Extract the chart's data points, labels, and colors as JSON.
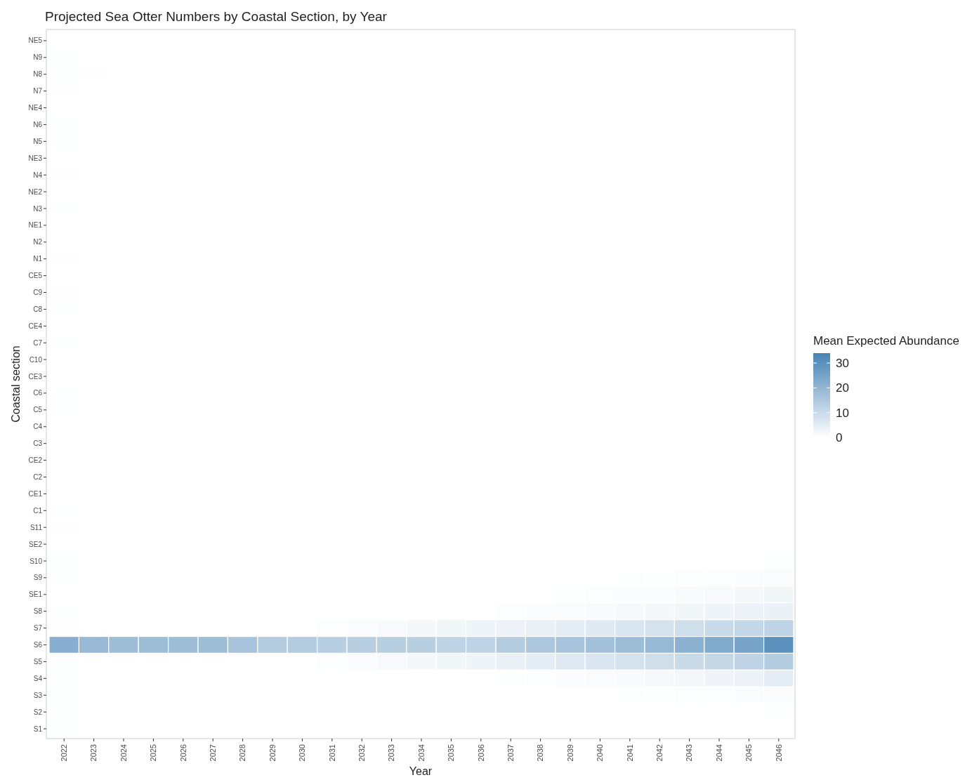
{
  "chart_data": {
    "type": "heatmap",
    "title": "Projected Sea Otter Numbers by Coastal Section, by Year",
    "xlabel": "Year",
    "ylabel": "Coastal section",
    "clabel": "Mean Expected Abundance",
    "categories": [
      "2022",
      "2023",
      "2024",
      "2025",
      "2026",
      "2027",
      "2028",
      "2029",
      "2030",
      "2031",
      "2032",
      "2033",
      "2034",
      "2035",
      "2036",
      "2037",
      "2038",
      "2039",
      "2040",
      "2041",
      "2042",
      "2043",
      "2044",
      "2045",
      "2046"
    ],
    "y_categories": [
      "NE5",
      "N9",
      "N8",
      "N7",
      "NE4",
      "N6",
      "N5",
      "NE3",
      "N4",
      "NE2",
      "N3",
      "NE1",
      "N2",
      "N1",
      "CE5",
      "C9",
      "C8",
      "CE4",
      "C7",
      "C10",
      "CE3",
      "C6",
      "C5",
      "C4",
      "C3",
      "CE2",
      "C2",
      "CE1",
      "C1",
      "S11",
      "SE2",
      "S10",
      "S9",
      "SE1",
      "S8",
      "S7",
      "S6",
      "S5",
      "S4",
      "S3",
      "S2",
      "S1"
    ],
    "cells": [
      [
        0,
        0,
        0,
        0,
        0,
        0,
        0,
        0,
        0,
        0,
        0,
        0,
        0,
        0,
        0,
        0,
        0,
        0,
        0,
        0,
        0,
        0,
        0,
        0,
        0
      ],
      [
        0.3,
        0,
        0,
        0,
        0,
        0,
        0,
        0,
        0,
        0,
        0,
        0,
        0,
        0,
        0,
        0,
        0,
        0,
        0,
        0,
        0,
        0,
        0,
        0,
        0
      ],
      [
        0.3,
        0.2,
        0,
        0,
        0,
        0,
        0,
        0,
        0,
        0,
        0,
        0,
        0,
        0,
        0,
        0,
        0,
        0,
        0,
        0,
        0,
        0,
        0,
        0,
        0
      ],
      [
        0.2,
        0,
        0,
        0,
        0,
        0,
        0,
        0,
        0,
        0,
        0,
        0,
        0,
        0,
        0,
        0,
        0,
        0,
        0,
        0,
        0,
        0,
        0,
        0,
        0
      ],
      [
        0,
        0,
        0,
        0,
        0,
        0,
        0,
        0,
        0,
        0,
        0,
        0,
        0,
        0,
        0,
        0,
        0,
        0,
        0,
        0,
        0,
        0,
        0,
        0,
        0
      ],
      [
        0.3,
        0,
        0,
        0,
        0,
        0,
        0,
        0,
        0,
        0,
        0,
        0,
        0,
        0,
        0,
        0,
        0,
        0,
        0,
        0,
        0,
        0,
        0,
        0,
        0
      ],
      [
        0.3,
        0,
        0,
        0,
        0,
        0,
        0,
        0,
        0,
        0,
        0,
        0,
        0,
        0,
        0,
        0,
        0,
        0,
        0,
        0,
        0,
        0,
        0,
        0,
        0
      ],
      [
        0,
        0,
        0,
        0,
        0,
        0,
        0,
        0,
        0,
        0,
        0,
        0,
        0,
        0,
        0,
        0,
        0,
        0,
        0,
        0,
        0,
        0,
        0,
        0,
        0
      ],
      [
        0.2,
        0,
        0,
        0,
        0,
        0,
        0,
        0,
        0,
        0,
        0,
        0,
        0,
        0,
        0,
        0,
        0,
        0,
        0,
        0,
        0,
        0,
        0,
        0,
        0
      ],
      [
        0,
        0,
        0,
        0,
        0,
        0,
        0,
        0,
        0,
        0,
        0,
        0,
        0,
        0,
        0,
        0,
        0,
        0,
        0,
        0,
        0,
        0,
        0,
        0,
        0
      ],
      [
        0.3,
        0,
        0,
        0,
        0,
        0,
        0,
        0,
        0,
        0,
        0,
        0,
        0,
        0,
        0,
        0,
        0,
        0,
        0,
        0,
        0,
        0,
        0,
        0,
        0
      ],
      [
        0,
        0,
        0,
        0,
        0,
        0,
        0,
        0,
        0,
        0,
        0,
        0,
        0,
        0,
        0,
        0,
        0,
        0,
        0,
        0,
        0,
        0,
        0,
        0,
        0
      ],
      [
        0,
        0,
        0,
        0,
        0,
        0,
        0,
        0,
        0,
        0,
        0,
        0,
        0,
        0,
        0,
        0,
        0,
        0,
        0,
        0,
        0,
        0,
        0,
        0,
        0
      ],
      [
        0.2,
        0,
        0,
        0,
        0,
        0,
        0,
        0,
        0,
        0,
        0,
        0,
        0,
        0,
        0,
        0,
        0,
        0,
        0,
        0,
        0,
        0,
        0,
        0,
        0
      ],
      [
        0,
        0,
        0,
        0,
        0,
        0,
        0,
        0,
        0,
        0,
        0,
        0,
        0,
        0,
        0,
        0,
        0,
        0,
        0,
        0,
        0,
        0,
        0,
        0,
        0
      ],
      [
        0.2,
        0,
        0,
        0,
        0,
        0,
        0,
        0,
        0,
        0,
        0,
        0,
        0,
        0,
        0,
        0,
        0,
        0,
        0,
        0,
        0,
        0,
        0,
        0,
        0
      ],
      [
        0.3,
        0,
        0,
        0,
        0,
        0,
        0,
        0,
        0,
        0,
        0,
        0,
        0,
        0,
        0,
        0,
        0,
        0,
        0,
        0,
        0,
        0,
        0,
        0,
        0
      ],
      [
        0,
        0,
        0,
        0,
        0,
        0,
        0,
        0,
        0,
        0,
        0,
        0,
        0,
        0,
        0,
        0,
        0,
        0,
        0,
        0,
        0,
        0,
        0,
        0,
        0
      ],
      [
        0.3,
        0,
        0,
        0,
        0,
        0,
        0,
        0,
        0,
        0,
        0,
        0,
        0,
        0,
        0,
        0,
        0,
        0,
        0,
        0,
        0,
        0,
        0,
        0,
        0
      ],
      [
        0,
        0,
        0,
        0,
        0,
        0,
        0,
        0,
        0,
        0,
        0,
        0,
        0,
        0,
        0,
        0,
        0,
        0,
        0,
        0,
        0,
        0,
        0,
        0,
        0
      ],
      [
        0,
        0,
        0,
        0,
        0,
        0,
        0,
        0,
        0,
        0,
        0,
        0,
        0,
        0,
        0,
        0,
        0,
        0,
        0,
        0,
        0,
        0,
        0,
        0,
        0
      ],
      [
        0.1,
        0,
        0,
        0,
        0,
        0,
        0,
        0,
        0,
        0,
        0,
        0,
        0,
        0,
        0,
        0,
        0,
        0,
        0,
        0,
        0,
        0,
        0,
        0,
        0
      ],
      [
        0.1,
        0,
        0,
        0,
        0,
        0,
        0,
        0,
        0,
        0,
        0,
        0,
        0,
        0,
        0,
        0,
        0,
        0,
        0,
        0,
        0,
        0,
        0,
        0,
        0
      ],
      [
        0,
        0,
        0,
        0,
        0,
        0,
        0,
        0,
        0,
        0,
        0,
        0,
        0,
        0,
        0,
        0,
        0,
        0,
        0,
        0,
        0,
        0,
        0,
        0,
        0
      ],
      [
        0,
        0,
        0,
        0,
        0,
        0,
        0,
        0,
        0,
        0,
        0,
        0,
        0,
        0,
        0,
        0,
        0,
        0,
        0,
        0,
        0,
        0,
        0,
        0,
        0
      ],
      [
        0,
        0,
        0,
        0,
        0,
        0,
        0,
        0,
        0,
        0,
        0,
        0,
        0,
        0,
        0,
        0,
        0,
        0,
        0,
        0,
        0,
        0,
        0,
        0,
        0
      ],
      [
        0,
        0,
        0,
        0,
        0,
        0,
        0,
        0,
        0,
        0,
        0,
        0,
        0,
        0,
        0,
        0,
        0,
        0,
        0,
        0,
        0,
        0,
        0,
        0,
        0
      ],
      [
        0,
        0,
        0,
        0,
        0,
        0,
        0,
        0,
        0,
        0,
        0,
        0,
        0,
        0,
        0,
        0,
        0,
        0,
        0,
        0,
        0,
        0,
        0,
        0,
        0
      ],
      [
        0.1,
        0,
        0,
        0,
        0,
        0,
        0,
        0,
        0,
        0,
        0,
        0,
        0,
        0,
        0,
        0,
        0,
        0,
        0,
        0,
        0,
        0,
        0,
        0,
        0
      ],
      [
        0.2,
        0,
        0,
        0,
        0,
        0,
        0,
        0,
        0,
        0,
        0,
        0,
        0,
        0,
        0,
        0,
        0,
        0,
        0,
        0,
        0,
        0,
        0,
        0,
        0
      ],
      [
        0,
        0,
        0,
        0,
        0,
        0,
        0,
        0,
        0,
        0,
        0,
        0,
        0,
        0,
        0,
        0,
        0,
        0,
        0,
        0,
        0,
        0,
        0,
        0,
        0
      ],
      [
        0.3,
        0,
        0,
        0,
        0,
        0,
        0,
        0,
        0,
        0,
        0,
        0,
        0,
        0,
        0,
        0,
        0,
        0,
        0,
        0,
        0,
        0,
        0,
        0,
        0.3
      ],
      [
        0.3,
        0,
        0,
        0,
        0,
        0,
        0,
        0,
        0,
        0,
        0,
        0,
        0,
        0,
        0,
        0,
        0,
        0,
        0,
        0.3,
        0.4,
        0.5,
        0.6,
        0.8,
        1
      ],
      [
        0,
        0,
        0,
        0,
        0,
        0,
        0,
        0,
        0,
        0,
        0,
        0,
        0,
        0,
        0,
        0,
        0,
        0.3,
        0.5,
        0.7,
        0.9,
        1.2,
        1.5,
        2,
        2.5
      ],
      [
        0.3,
        0,
        0,
        0,
        0,
        0,
        0,
        0,
        0,
        0,
        0,
        0,
        0,
        0,
        0,
        0.5,
        0.7,
        1,
        1.3,
        1.6,
        2,
        2.5,
        3,
        3.5,
        4
      ],
      [
        0.2,
        0,
        0,
        0,
        0,
        0,
        0,
        0,
        0,
        0.5,
        1,
        1.5,
        2,
        2.5,
        3,
        3.5,
        4,
        5,
        6,
        7,
        8,
        9,
        10,
        11,
        12
      ],
      [
        22,
        19,
        18,
        18,
        18,
        18,
        16,
        14,
        14,
        13,
        13,
        13,
        13,
        12,
        12,
        14,
        15,
        16,
        17,
        18,
        19,
        21,
        23,
        25,
        30
      ],
      [
        0.3,
        0,
        0,
        0,
        0,
        0,
        0,
        0,
        0,
        0.5,
        1,
        1.5,
        2,
        2.5,
        3,
        4,
        5,
        6,
        7,
        8,
        9,
        10,
        11,
        12,
        14
      ],
      [
        0.3,
        0,
        0,
        0,
        0,
        0,
        0,
        0,
        0,
        0,
        0,
        0,
        0,
        0,
        0,
        0.3,
        0.5,
        0.7,
        1,
        1.3,
        1.7,
        2.2,
        3,
        3.5,
        5
      ],
      [
        0.3,
        0,
        0,
        0,
        0,
        0,
        0,
        0,
        0,
        0,
        0,
        0,
        0,
        0,
        0,
        0,
        0,
        0,
        0,
        0.3,
        0.4,
        0.5,
        0.6,
        0.8,
        1
      ],
      [
        0.3,
        0,
        0,
        0,
        0,
        0,
        0,
        0,
        0,
        0,
        0,
        0,
        0,
        0,
        0,
        0,
        0,
        0,
        0,
        0,
        0,
        0,
        0,
        0,
        0.3
      ],
      [
        0.3,
        0,
        0,
        0,
        0,
        0,
        0,
        0,
        0,
        0,
        0,
        0,
        0,
        0,
        0,
        0,
        0,
        0,
        0,
        0,
        0,
        0,
        0,
        0,
        0
      ]
    ],
    "colors": [
      "#ffffff",
      "#4682b4"
    ],
    "clim": [
      0,
      34
    ],
    "cticks": [
      0,
      10,
      20,
      30
    ]
  }
}
